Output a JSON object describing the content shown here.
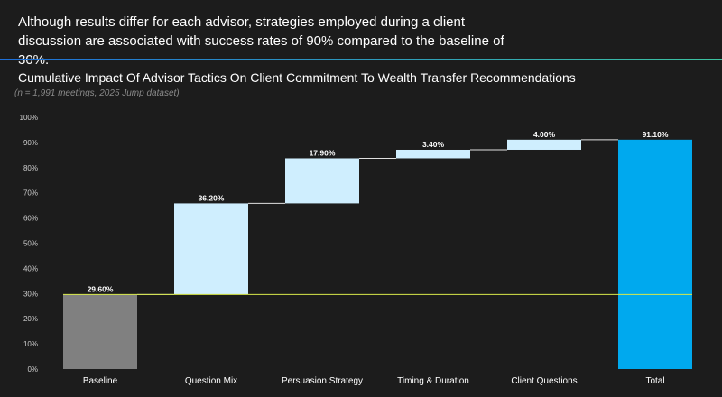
{
  "headline": "Although results differ for each advisor, strategies employed during a client discussion are associated with success rates of 90% compared to the baseline of 30%.",
  "colors": {
    "background": "#1c1c1c",
    "baseline_bar": "#808080",
    "increment_bar": "#cfeefe",
    "total_bar": "#00a9ee",
    "baseline_line": "#d7e84a",
    "connector": "#e0e0e0"
  },
  "chart_data": {
    "type": "bar",
    "subtype": "waterfall",
    "title": "Cumulative Impact Of Advisor Tactics On Client Commitment To Wealth Transfer Recommendations",
    "subtitle": "(n = 1,991 meetings, 2025 Jump dataset)",
    "categories": [
      "Baseline",
      "Question Mix",
      "Persuasion Strategy",
      "Timing & Duration",
      "Client Questions",
      "Total"
    ],
    "values": [
      29.6,
      36.2,
      17.9,
      3.4,
      4.0,
      91.1
    ],
    "data_labels": [
      "29.60%",
      "36.20%",
      "17.90%",
      "3.40%",
      "4.00%",
      "91.10%"
    ],
    "bar_kinds": [
      "baseline",
      "increment",
      "increment",
      "increment",
      "increment",
      "total"
    ],
    "reference_line": 29.6,
    "ylim": [
      0,
      100
    ],
    "yticks": [
      0,
      10,
      20,
      30,
      40,
      50,
      60,
      70,
      80,
      90,
      100
    ],
    "ytick_labels": [
      "0%",
      "10%",
      "20%",
      "30%",
      "40%",
      "50%",
      "60%",
      "70%",
      "80%",
      "90%",
      "100%"
    ],
    "grid": false,
    "legend": "none"
  }
}
